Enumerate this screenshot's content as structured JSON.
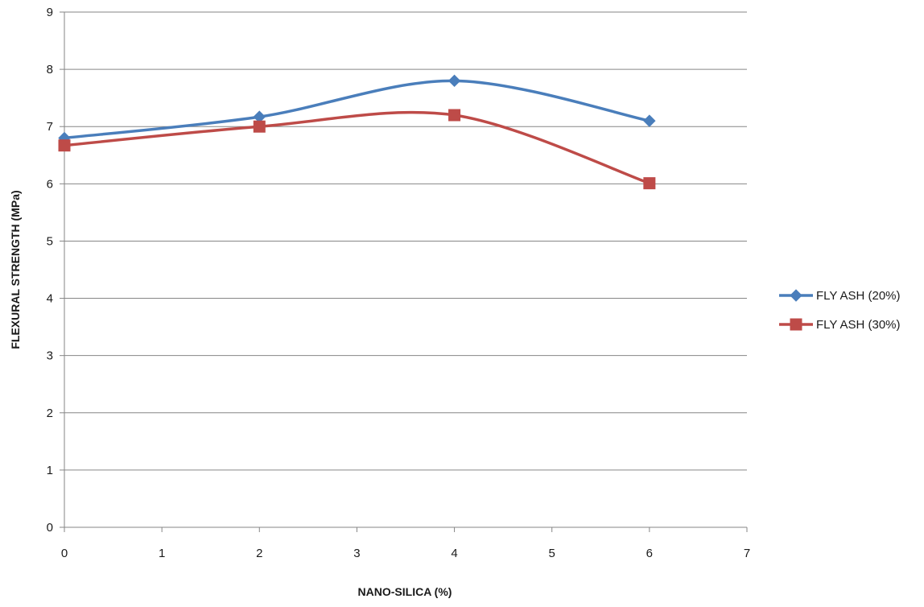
{
  "chart_data": {
    "type": "line",
    "title": "",
    "xlabel": "NANO-SILICA (%)",
    "ylabel": "FLEXURAL STRENGTH  (MPa)",
    "xlim": [
      0,
      7
    ],
    "ylim": [
      0,
      9
    ],
    "x_ticks": [
      0,
      1,
      2,
      3,
      4,
      5,
      6,
      7
    ],
    "y_ticks": [
      0,
      1,
      2,
      3,
      4,
      5,
      6,
      7,
      8,
      9
    ],
    "grid": "horizontal",
    "smooth": true,
    "legend_position": "right",
    "series": [
      {
        "name": "FLY ASH (20%)",
        "marker": "diamond",
        "color": "#4a7ebb",
        "x": [
          0,
          2,
          4,
          6
        ],
        "y": [
          6.8,
          7.17,
          7.8,
          7.1
        ]
      },
      {
        "name": "FLY ASH (30%)",
        "marker": "square",
        "color": "#be4b48",
        "x": [
          0,
          2,
          4,
          6
        ],
        "y": [
          6.67,
          7.0,
          7.2,
          6.01
        ]
      }
    ]
  }
}
